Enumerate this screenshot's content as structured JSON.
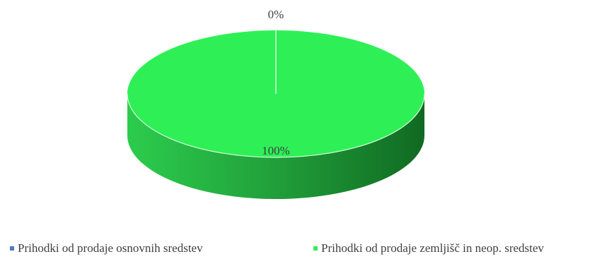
{
  "chart_data": {
    "type": "pie",
    "style": "3d",
    "categories": [
      "Prihodki od prodaje osnovnih sredstev",
      "Prihodki od prodaje zemljišč in neop. sredstev"
    ],
    "values": [
      0,
      100
    ],
    "data_labels": [
      "0%",
      "100%"
    ],
    "colors": [
      "#4a7ebb",
      "#2ef056"
    ],
    "legend_position": "bottom"
  }
}
